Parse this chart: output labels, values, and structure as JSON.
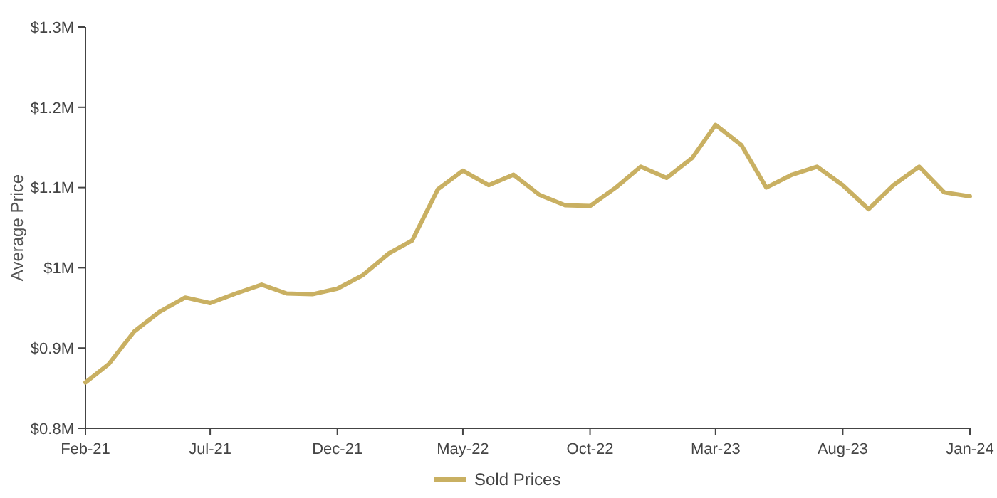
{
  "chart_data": {
    "type": "line",
    "ylabel": "Average Price",
    "x": [
      "2021-02",
      "2021-03",
      "2021-04",
      "2021-05",
      "2021-06",
      "2021-07",
      "2021-08",
      "2021-09",
      "2021-10",
      "2021-11",
      "2021-12",
      "2022-01",
      "2022-02",
      "2022-03",
      "2022-04",
      "2022-05",
      "2022-06",
      "2022-07",
      "2022-08",
      "2022-09",
      "2022-10",
      "2022-11",
      "2022-12",
      "2023-01",
      "2023-02",
      "2023-03",
      "2023-04",
      "2023-05",
      "2023-06",
      "2023-07",
      "2023-08",
      "2023-09",
      "2023-10",
      "2023-11",
      "2023-12",
      "2024-01"
    ],
    "series": [
      {
        "name": "Sold Prices",
        "color": "#c9b062",
        "values": [
          0.857,
          0.88,
          0.921,
          0.945,
          0.963,
          0.956,
          0.968,
          0.979,
          0.968,
          0.967,
          0.974,
          0.991,
          1.018,
          1.034,
          1.098,
          1.121,
          1.103,
          1.116,
          1.091,
          1.078,
          1.077,
          1.1,
          1.126,
          1.112,
          1.137,
          1.178,
          1.153,
          1.1,
          1.116,
          1.126,
          1.103,
          1.073,
          1.103,
          1.126,
          1.094,
          1.089
        ]
      }
    ],
    "xlim": [
      "2021-02",
      "2024-01"
    ],
    "xticks": [
      {
        "value": "2021-02",
        "label": "Feb-21"
      },
      {
        "value": "2021-07",
        "label": "Jul-21"
      },
      {
        "value": "2021-12",
        "label": "Dec-21"
      },
      {
        "value": "2022-05",
        "label": "May-22"
      },
      {
        "value": "2022-10",
        "label": "Oct-22"
      },
      {
        "value": "2023-03",
        "label": "Mar-23"
      },
      {
        "value": "2023-08",
        "label": "Aug-23"
      },
      {
        "value": "2024-01",
        "label": "Jan-24"
      }
    ],
    "ylim": [
      0.8,
      1.3
    ],
    "yticks": [
      {
        "value": 0.8,
        "label": "$0.8M"
      },
      {
        "value": 0.9,
        "label": "$0.9M"
      },
      {
        "value": 1.0,
        "label": "$1M"
      },
      {
        "value": 1.1,
        "label": "$1.1M"
      },
      {
        "value": 1.2,
        "label": "$1.2M"
      },
      {
        "value": 1.3,
        "label": "$1.3M"
      }
    ],
    "grid": false,
    "legend": "bottom",
    "marker": "none",
    "line_style": "solid"
  }
}
